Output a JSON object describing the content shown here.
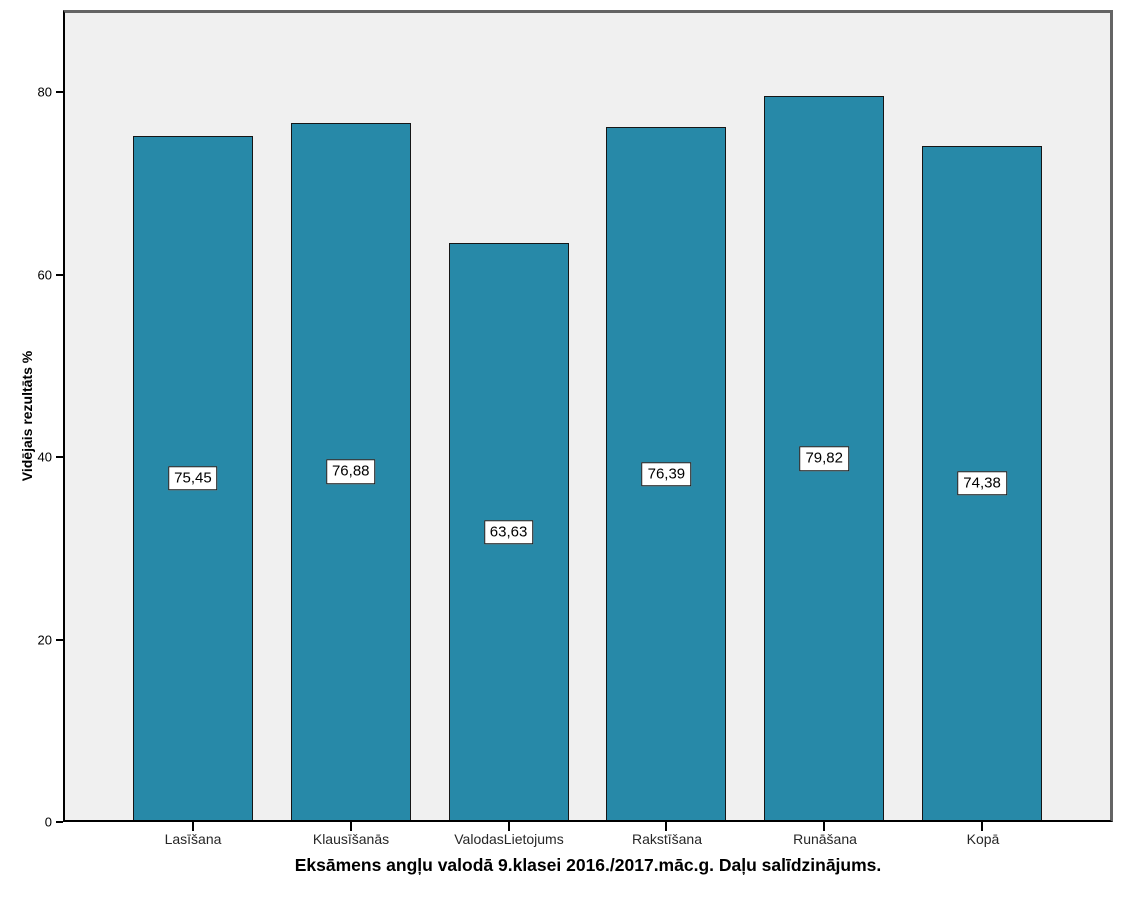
{
  "chart_data": {
    "type": "bar",
    "title": "Eksāmens angļu valodā 9.klasei 2016./2017.māc.g. Daļu salīdzinājums.",
    "xlabel": "",
    "ylabel": "Vidējais rezultāts %",
    "categories": [
      "Lasīšana",
      "Klausīšanās",
      "ValodasLietojums",
      "Rakstīšana",
      "Runāšana",
      "Kopā"
    ],
    "values": [
      75.45,
      76.88,
      63.63,
      76.39,
      79.82,
      74.38
    ],
    "value_labels": [
      "75,45",
      "76,88",
      "63,63",
      "76,39",
      "79,82",
      "74,38"
    ],
    "ylim": [
      0,
      89
    ],
    "yticks": [
      0,
      20,
      40,
      60,
      80
    ],
    "ytick_labels": [
      "0",
      "20",
      "40",
      "60",
      "80"
    ],
    "grid": false,
    "legend": "none",
    "colors": {
      "bar_fill": "#2789A8",
      "bar_border": "#161616",
      "plot_background": "#F0F0F0",
      "frame": "#646464",
      "axis": "#000000",
      "label_box_background": "#FFFFFF",
      "label_box_border": "#161616",
      "page_background": "#FFFFFF"
    }
  }
}
